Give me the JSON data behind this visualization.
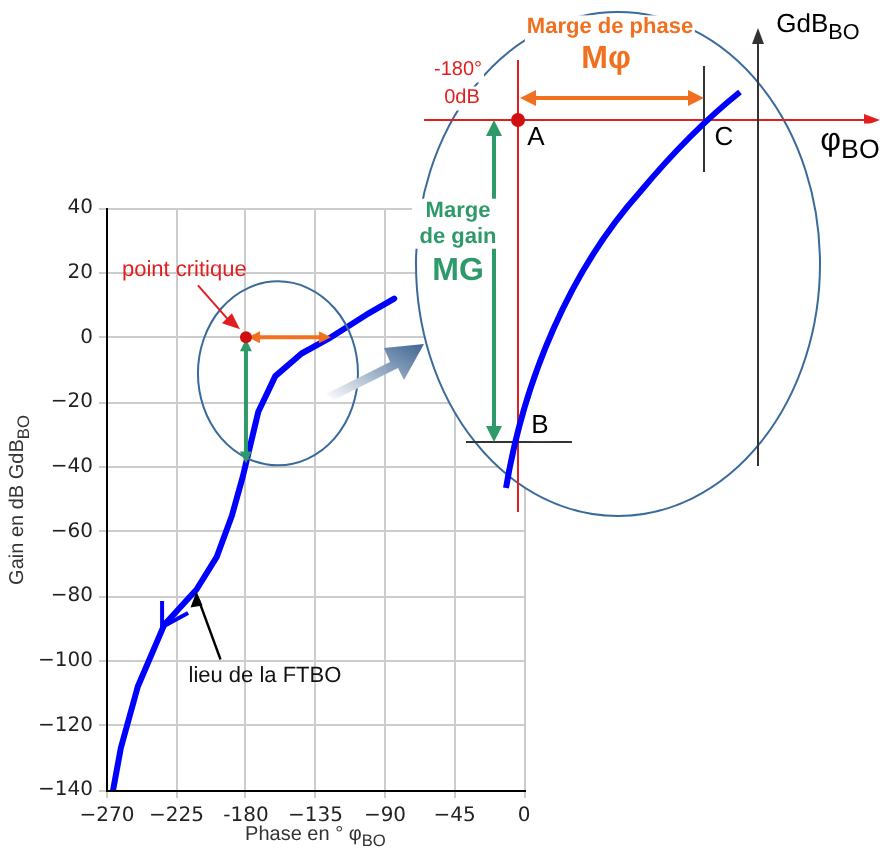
{
  "chart_data": {
    "type": "line",
    "xlabel": "Phase en ° φ$_{BO}$",
    "ylabel": "Gain en dB GdB$_{BO}$",
    "series": [
      {
        "color": "#0000ff",
        "x": [
          -266,
          -261,
          -250,
          -233,
          -212,
          -199,
          -189,
          -182,
          -178,
          -172,
          -161,
          -144,
          -125,
          -102,
          -84
        ],
        "values": [
          -140,
          -127,
          -108,
          -89,
          -78,
          -68,
          -55,
          -43,
          -35,
          -23,
          -12,
          -5,
          0,
          7,
          12
        ]
      }
    ],
    "xlim": [
      -270,
      0
    ],
    "ylim": [
      -140,
      40
    ],
    "xticks": [
      {
        "value": -270,
        "label": "−270"
      },
      {
        "value": -225,
        "label": "−225"
      },
      {
        "value": -180,
        "label": "-180"
      },
      {
        "value": -135,
        "label": "−135"
      },
      {
        "value": -90,
        "label": "−90"
      },
      {
        "value": -45,
        "label": "−45"
      },
      0
    ],
    "yticks": [
      40,
      20,
      0,
      {
        "value": -20,
        "label": "−20"
      },
      {
        "value": -40,
        "label": "−40"
      },
      {
        "value": -60,
        "label": "−60"
      },
      {
        "value": -80,
        "label": "−80"
      },
      {
        "value": -100,
        "label": "−100"
      },
      {
        "value": -120,
        "label": "−120"
      },
      {
        "value": -140,
        "label": "−140"
      }
    ],
    "grid": true,
    "marker": "none",
    "line_style": "solid",
    "annotations": [
      {
        "text": "point critique",
        "x": -180,
        "y": 0
      },
      {
        "text": "lieu de la FTBO",
        "x": -212,
        "y": -78
      },
      "Marge de phase",
      "Mφ",
      "-180°",
      "0dB",
      "A",
      "C",
      "B",
      "GdB$_{BO}$",
      "φ$_{BO}$",
      "Marge de gain",
      "MG"
    ]
  }
}
